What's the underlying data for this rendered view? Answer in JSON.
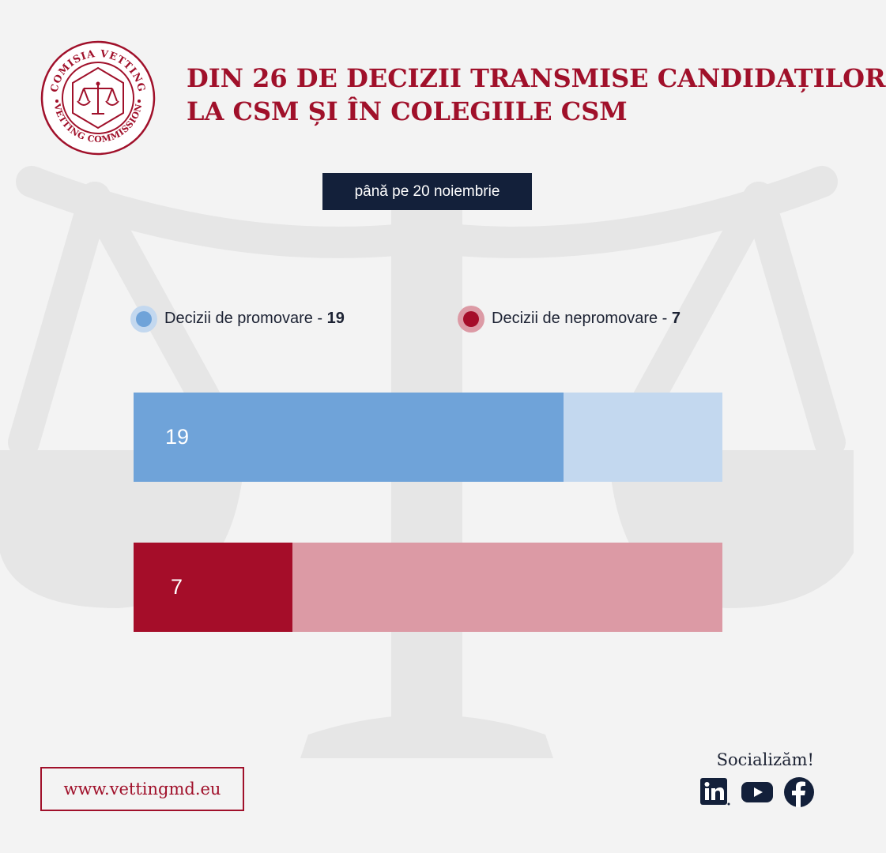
{
  "header": {
    "title_lines": [
      "DIN 26 DE DECIZII TRANSMISE CANDIDAȚILOR",
      "LA CSM ȘI ÎN COLEGIILE CSM"
    ],
    "date_badge": "până pe 20 noiembrie"
  },
  "logo": {
    "text_top": "COMISIA VETTING",
    "text_bottom": "VETTING COMMISSION"
  },
  "legend": [
    {
      "label": "Decizii de promovare",
      "separator": " - ",
      "value": "19",
      "color": "#6fa3d9"
    },
    {
      "label": "Decizii de nepromovare",
      "separator": " - ",
      "value": "7",
      "color": "#a50d29"
    }
  ],
  "chart_data": {
    "type": "bar",
    "orientation": "horizontal",
    "total": 26,
    "series": [
      {
        "name": "Decizii de promovare",
        "value": 19,
        "color": "#6fa3d9",
        "track_color": "#c3d8ef"
      },
      {
        "name": "Decizii de nepromovare",
        "value": 7,
        "color": "#a50d29",
        "track_color": "#dc9aa5"
      }
    ],
    "grid": false,
    "legend_position": "top"
  },
  "footer": {
    "website": "www.vettingmd.eu",
    "social_title": "Socializăm!",
    "social_icons": [
      "linkedin-icon",
      "youtube-icon",
      "facebook-icon"
    ]
  },
  "colors": {
    "brand_red": "#a0102a",
    "navy": "#13203a",
    "background": "#f3f3f3"
  }
}
